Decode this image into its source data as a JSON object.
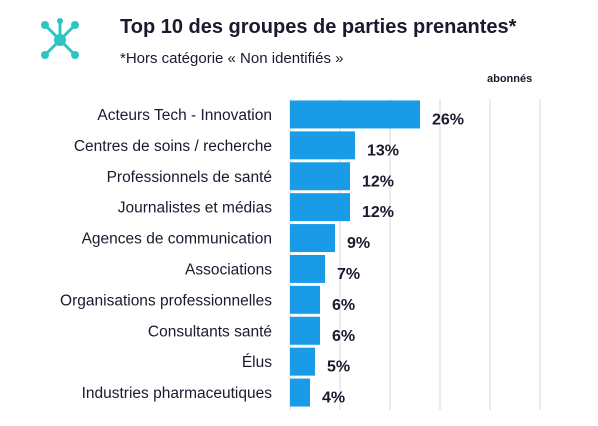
{
  "header": {
    "title": "Top 10 des groupes de parties prenantes*",
    "subtitle": "*Hors catégorie « Non identifiés »",
    "logo_icon": "network-node-icon"
  },
  "colors": {
    "bar": "#1a9be8",
    "grid": "#d9d9d9",
    "logo": "#2ec4c4",
    "text": "#1a1a2e"
  },
  "chart_data": {
    "type": "bar",
    "orientation": "horizontal",
    "title": "Top 10 des groupes de parties prenantes*",
    "subtitle": "*Hors catégorie « Non identifiés »",
    "xlabel": "",
    "ylabel": "",
    "xlim": [
      0,
      50
    ],
    "grid": true,
    "categories": [
      "Acteurs Tech - Innovation",
      "Centres de soins / recherche",
      "Professionnels de santé",
      "Journalistes et médias",
      "Agences de communication",
      "Associations",
      "Organisations professionnelles",
      "Consultants santé",
      "Élus",
      "Industries pharmaceutiques"
    ],
    "series": [
      {
        "name": "abonnés",
        "values": [
          26,
          13,
          12,
          12,
          9,
          7,
          6,
          6,
          5,
          4
        ],
        "labels": [
          "26%",
          "13%",
          "12%",
          "12%",
          "9%",
          "7%",
          "6%",
          "6%",
          "5%",
          "4%"
        ]
      }
    ]
  }
}
